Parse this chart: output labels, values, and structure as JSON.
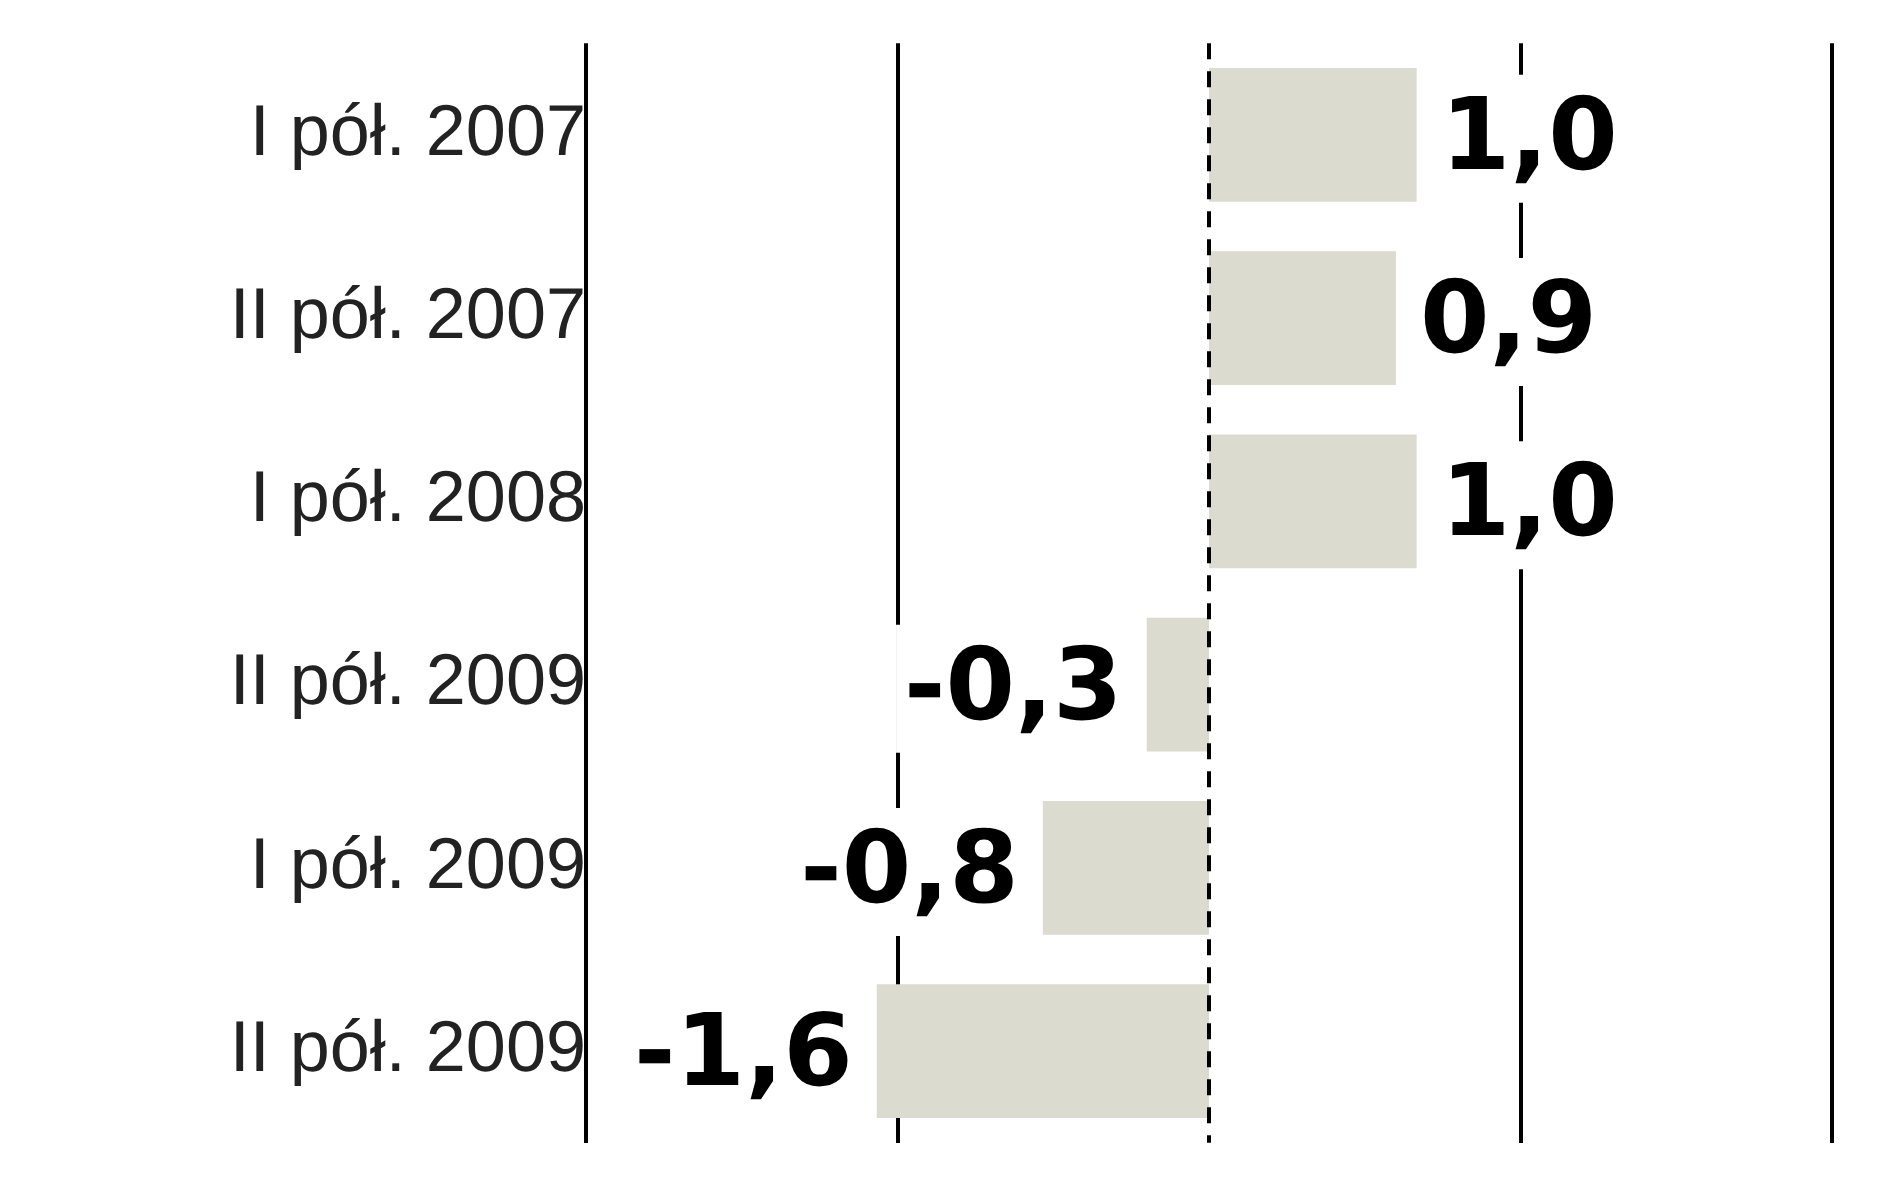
{
  "chart_data": {
    "type": "bar",
    "orientation": "horizontal",
    "categories": [
      "I pół. 2007",
      "II pół. 2007",
      "I pół. 2008",
      "II pół. 2009",
      "I pół. 2009",
      "II pół. 2009"
    ],
    "values": [
      1.0,
      0.9,
      1.0,
      -0.3,
      -0.8,
      -1.6
    ],
    "value_labels": [
      "1,0",
      "0,9",
      "1,0",
      "-0,3",
      "-0,8",
      "-1,6"
    ],
    "color": "#dcdbd0",
    "xlim": [
      -3,
      3
    ],
    "xticks": [
      {
        "value": -3,
        "label": null
      },
      {
        "value": -1.5,
        "label": null
      },
      {
        "value": 1.5,
        "label": null
      },
      {
        "value": 3,
        "label": null
      }
    ],
    "ref_lines": [
      {
        "axis": "x",
        "value": 0,
        "line_style": "dashed",
        "color": "#000000"
      }
    ],
    "grid": "x",
    "legend": false,
    "tick_labels": "y"
  }
}
